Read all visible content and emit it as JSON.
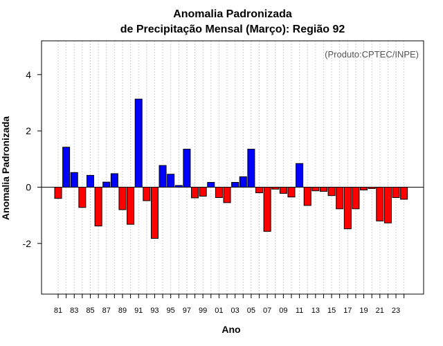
{
  "chart_data": {
    "type": "bar",
    "title_line1": "Anomalia Padronizada",
    "title_line2": "de Precipitação Mensal (Março): Região 92",
    "xlabel": "Ano",
    "ylabel": "Anomalia Padronizada",
    "annotation": "(Produto:CPTEC/INPE)",
    "ylim": [
      -3.8,
      5.2
    ],
    "yticks": [
      -2,
      0,
      2,
      4
    ],
    "ytick_labels": [
      "-2",
      "0",
      "2",
      "4"
    ],
    "grid": true,
    "positive_color": "#0000ff",
    "negative_color": "#ff0000",
    "categories": [
      "81",
      "82",
      "83",
      "84",
      "85",
      "86",
      "87",
      "88",
      "89",
      "90",
      "91",
      "92",
      "93",
      "94",
      "95",
      "96",
      "97",
      "98",
      "99",
      "00",
      "01",
      "02",
      "03",
      "04",
      "05",
      "06",
      "07",
      "08",
      "09",
      "10",
      "11",
      "12",
      "13",
      "14",
      "15",
      "16",
      "17",
      "18",
      "19",
      "20",
      "21",
      "22",
      "23",
      "24"
    ],
    "values": [
      -0.4,
      1.42,
      0.52,
      -0.72,
      0.42,
      -1.38,
      0.18,
      0.48,
      -0.8,
      -1.32,
      3.13,
      -0.48,
      -1.82,
      0.77,
      0.46,
      0.06,
      1.35,
      -0.38,
      -0.32,
      0.17,
      -0.37,
      -0.55,
      0.17,
      0.37,
      1.35,
      -0.2,
      -1.57,
      -0.07,
      -0.22,
      -0.35,
      0.84,
      -0.65,
      -0.13,
      -0.15,
      -0.3,
      -0.77,
      -1.48,
      -0.77,
      -0.1,
      -0.05,
      -1.2,
      -1.27,
      -0.37,
      -0.43
    ],
    "xtick_labels": [
      "81",
      "83",
      "85",
      "87",
      "89",
      "91",
      "93",
      "95",
      "97",
      "99",
      "01",
      "03",
      "05",
      "07",
      "09",
      "11",
      "13",
      "15",
      "17",
      "19",
      "21",
      "23"
    ]
  }
}
